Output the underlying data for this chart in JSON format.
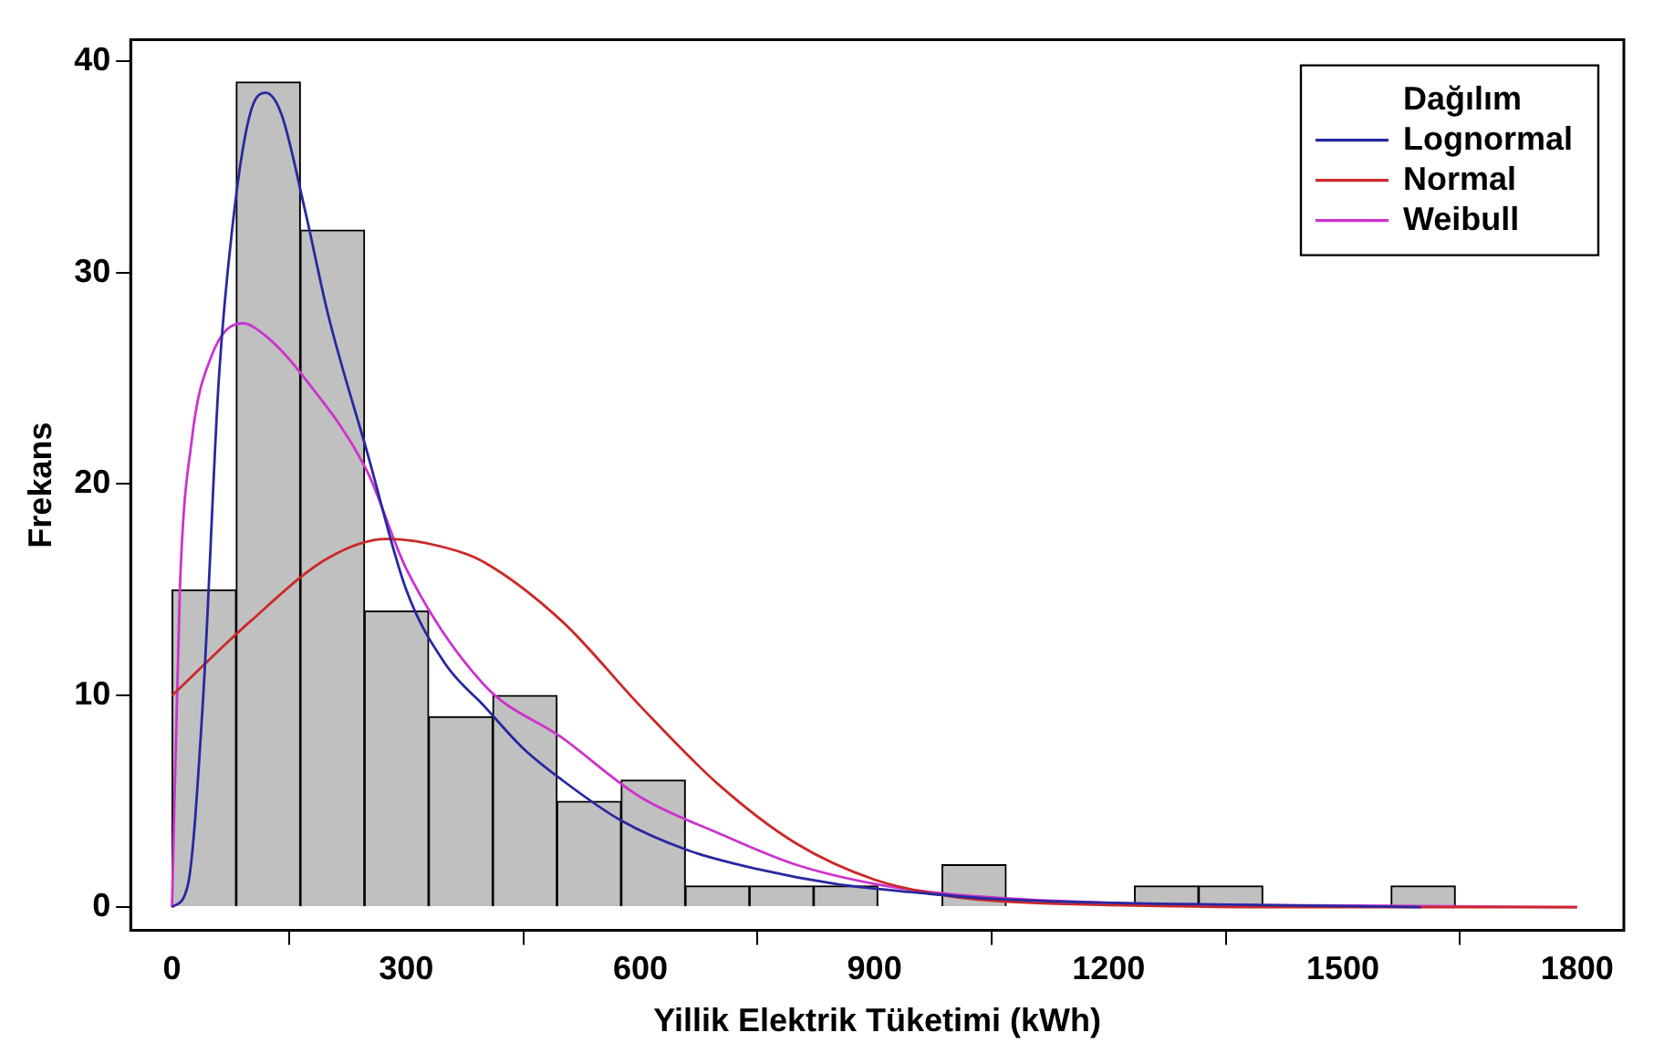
{
  "chart_data": {
    "type": "histogram",
    "xlabel": "Yillik Elektrik Tüketimi (kWh)",
    "ylabel": "Frekans",
    "legend_title": "Dağılım",
    "bins": [
      0,
      82.2,
      164.4,
      246.6,
      328.8,
      411,
      493.2,
      575.4,
      657.6,
      739.8,
      822,
      904.2,
      986.4,
      1068.6,
      1150.8,
      1233,
      1315.2,
      1397.4,
      1479.6,
      1561.8,
      1644
    ],
    "values": [
      15,
      39,
      32,
      14,
      9,
      10,
      5,
      6,
      1,
      1,
      1,
      0,
      2,
      0,
      0,
      1,
      1,
      0,
      0,
      1
    ],
    "color": "#c0c0c0",
    "series": [
      {
        "name": "Lognormal",
        "type": "line",
        "color": "#2828a0",
        "x": [
          0,
          20,
          40,
          60,
          80,
          100,
          120,
          140,
          170,
          200,
          250,
          300,
          350,
          400,
          450,
          500,
          575,
          660,
          750,
          850,
          950,
          1050,
          1200,
          1400,
          1600
        ],
        "values": [
          0,
          1,
          10,
          25,
          33,
          37.5,
          38.5,
          37.5,
          33,
          28,
          21.5,
          15,
          11.5,
          9.5,
          7.5,
          6,
          4.1,
          2.7,
          1.8,
          1.1,
          0.7,
          0.4,
          0.2,
          0.1,
          0
        ]
      },
      {
        "name": "Normal",
        "type": "line",
        "color": "#cc2828",
        "x": [
          0,
          100,
          200,
          275,
          350,
          400,
          500,
          600,
          700,
          800,
          900,
          1000,
          1100,
          1200,
          1400,
          1800
        ],
        "values": [
          10,
          13.5,
          16.5,
          17.4,
          17,
          16.3,
          13.5,
          9.5,
          5.8,
          3,
          1.3,
          0.5,
          0.2,
          0.1,
          0,
          0
        ]
      },
      {
        "name": "Weibull",
        "type": "line",
        "color": "#cc33cc",
        "x": [
          0,
          10,
          25,
          50,
          90,
          120,
          170,
          250,
          300,
          400,
          500,
          600,
          700,
          800,
          900,
          1000,
          1200,
          1400,
          1800
        ],
        "values": [
          0,
          15,
          22,
          26,
          27.6,
          27,
          25,
          20.6,
          16,
          10.5,
          8,
          5.2,
          3.5,
          2,
          1.1,
          0.6,
          0.2,
          0.1,
          0
        ]
      }
    ],
    "xlim": [
      -53,
      1860
    ],
    "xticks": [
      0,
      300,
      600,
      900,
      1200,
      1500,
      1800
    ],
    "ylim": [
      -1.1,
      41
    ],
    "yticks": [
      0,
      10,
      20,
      30,
      40
    ],
    "legend": "top right",
    "marker": "none",
    "line_style": "solid"
  }
}
